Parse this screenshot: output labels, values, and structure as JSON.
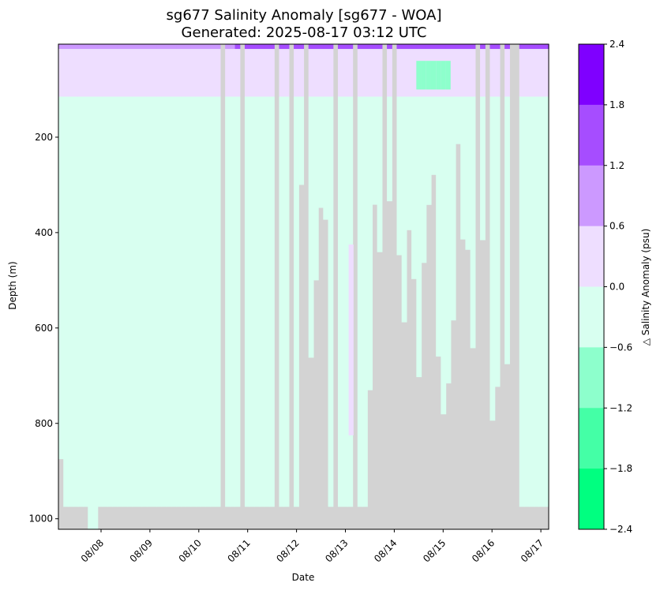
{
  "chart_data": {
    "type": "heatmap",
    "title_line1": "sg677 Salinity Anomaly [sg677 - WOA]",
    "title_line2": "Generated: 2025-08-17 03:12 UTC",
    "xlabel": "Date",
    "ylabel": "Depth (m)",
    "colorbar_label": "△ Salinity Anomaly (psu)",
    "x_ticks": [
      "08/08",
      "08/09",
      "08/10",
      "08/11",
      "08/12",
      "08/13",
      "08/14",
      "08/15",
      "08/16",
      "08/17"
    ],
    "y_ticks": [
      "200",
      "400",
      "600",
      "800",
      "1000"
    ],
    "ylim": [
      1022,
      5
    ],
    "colorbar_levels": [
      "2.4",
      "1.8",
      "1.2",
      "0.6",
      "0.0",
      "−0.6",
      "−1.2",
      "−1.8",
      "−2.4"
    ],
    "colorbar_colors": [
      "#7f00ff",
      "#a64dff",
      "#cc99ff",
      "#eedeff",
      "#d8fff0",
      "#8dffcc",
      "#44ffa6",
      "#00ff80"
    ],
    "no_data_color": "#d3d3d3",
    "dive_max_depth_m": [
      875,
      975,
      975,
      975,
      975,
      975,
      1022,
      1022,
      975,
      975,
      975,
      975,
      975,
      975,
      975,
      975,
      975,
      975,
      975,
      975,
      975,
      975,
      975,
      975,
      975,
      975,
      975,
      975,
      975,
      975,
      975,
      975,
      975,
      975,
      975,
      975,
      975,
      975,
      975,
      975,
      975,
      975,
      975,
      975,
      975,
      975,
      975,
      975,
      975,
      975,
      975,
      975,
      975,
      975,
      975,
      975,
      975,
      975,
      975,
      975,
      975,
      975,
      975,
      975,
      975,
      975,
      975,
      975,
      975,
      975,
      975,
      975,
      975,
      975,
      975,
      975,
      975,
      975,
      975,
      975,
      975,
      975,
      975,
      975,
      975,
      975,
      975,
      975,
      975,
      975,
      975,
      975,
      975,
      975,
      975,
      975,
      975,
      975,
      975,
      975
    ],
    "summary": {
      "surface_0_15m": "1.2 to 1.8",
      "upper_15_115m": "0.0 to 0.6",
      "below_115m": "-0.6 to 0.0",
      "anomaly_column_08_13_depth_m": [
        425,
        825
      ],
      "anomaly_column_08_13_value": "0.0 to 0.6"
    }
  }
}
